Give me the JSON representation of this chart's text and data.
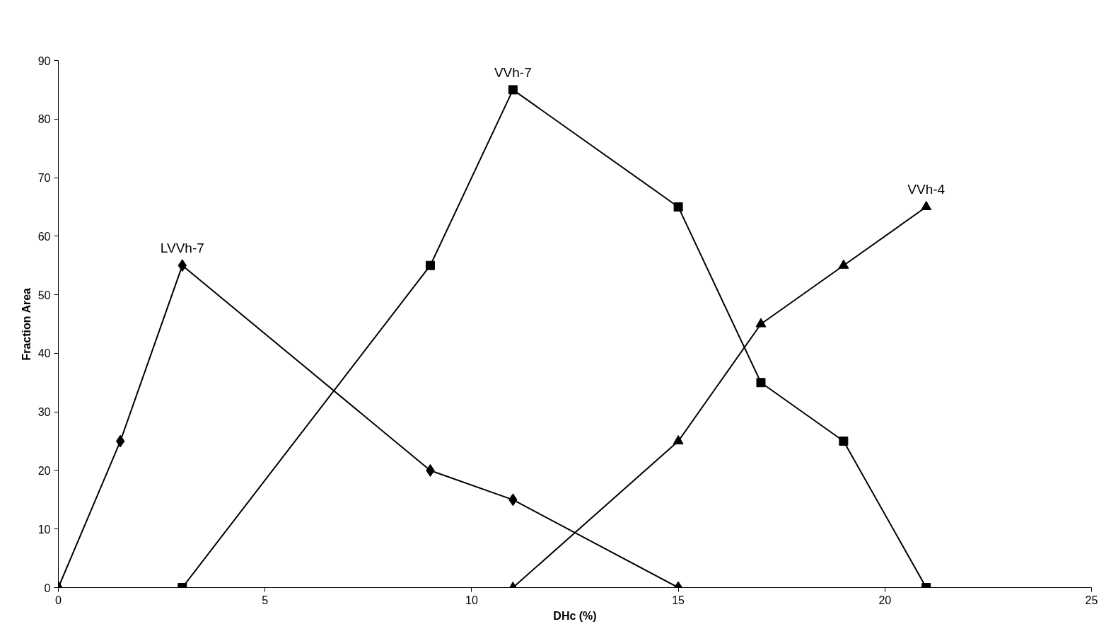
{
  "chart_data": {
    "type": "line",
    "xlabel": "DHc (%)",
    "ylabel": "Fraction Area",
    "xlim": [
      0,
      25
    ],
    "xticks": [
      0,
      5,
      10,
      15,
      20,
      25
    ],
    "ylim": [
      0,
      90
    ],
    "yticks": [
      0,
      10,
      20,
      30,
      40,
      50,
      60,
      70,
      80,
      90
    ],
    "grid": false,
    "line_style": "solid",
    "series": [
      {
        "name": "LVVh-7",
        "color": "#000000",
        "marker": "diamond",
        "x": [
          0,
          1.5,
          3,
          9,
          11,
          15
        ],
        "values": [
          0,
          25,
          55,
          20,
          15,
          0
        ]
      },
      {
        "name": "VVh-7",
        "color": "#000000",
        "marker": "square",
        "x": [
          3,
          9,
          11,
          15,
          17,
          19,
          21
        ],
        "values": [
          0,
          55,
          85,
          65,
          35,
          25,
          0
        ]
      },
      {
        "name": "VVh-4",
        "color": "#000000",
        "marker": "triangle",
        "x": [
          11,
          15,
          17,
          19,
          21
        ],
        "values": [
          0,
          25,
          45,
          55,
          65
        ]
      }
    ]
  }
}
